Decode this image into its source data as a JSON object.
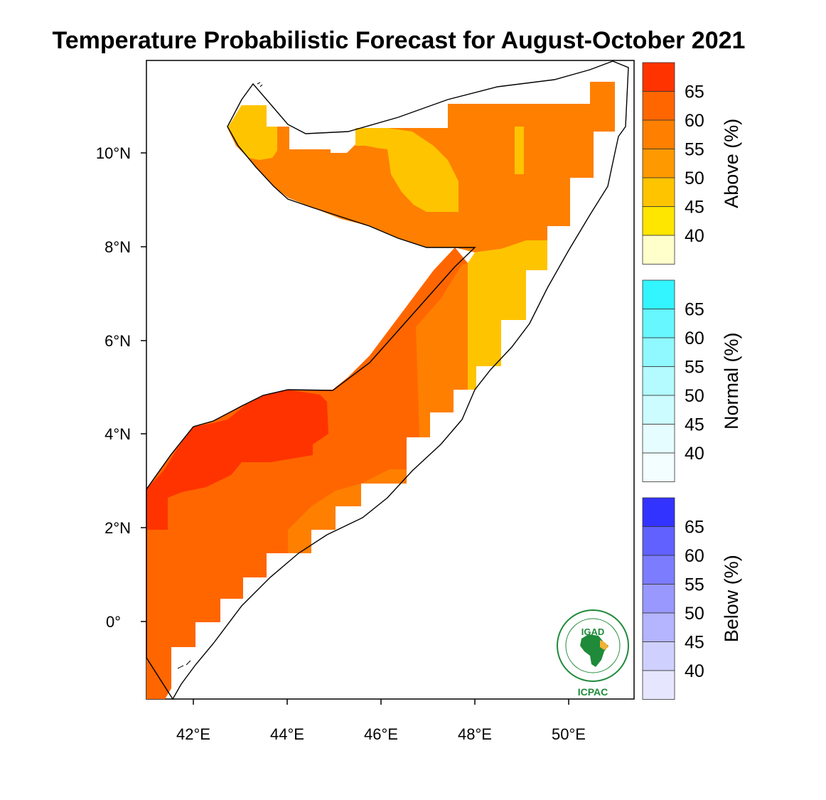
{
  "title": "Temperature Probabilistic Forecast for August-October 2021",
  "axes": {
    "lat_ticks": [
      "10°N",
      "8°N",
      "6°N",
      "4°N",
      "2°N",
      "0°"
    ],
    "lon_ticks": [
      "42°E",
      "44°E",
      "46°E",
      "48°E",
      "50°E"
    ]
  },
  "legends": [
    {
      "title": "Above (%)",
      "values": [
        "65",
        "60",
        "55",
        "50",
        "45",
        "40"
      ],
      "colors": [
        "#ff3300",
        "#ff6600",
        "#ff7f00",
        "#ff9900",
        "#ffc400",
        "#ffe600",
        "#ffffcc"
      ]
    },
    {
      "title": "Normal (%)",
      "values": [
        "65",
        "60",
        "55",
        "50",
        "45",
        "40"
      ],
      "colors": [
        "#33f5ff",
        "#66f7ff",
        "#8ff9ff",
        "#b3fbff",
        "#ccfcff",
        "#e6fdff",
        "#f2feff"
      ]
    },
    {
      "title": "Below (%)",
      "values": [
        "65",
        "60",
        "55",
        "50",
        "45",
        "40"
      ],
      "colors": [
        "#3333ff",
        "#6161ff",
        "#7c7cff",
        "#9898ff",
        "#b4b4ff",
        "#d0d0ff",
        "#e6e6ff"
      ]
    }
  ],
  "logo": {
    "top_text": "IGAD",
    "bottom_text": "ICPAC"
  },
  "map": {
    "region": "Somalia",
    "category": "Above",
    "levels_percent": [
      {
        "area": "southwest interior",
        "value": 65
      },
      {
        "area": "south and central",
        "value": 60
      },
      {
        "area": "south coast edge",
        "value": 55
      },
      {
        "area": "north",
        "value": 55
      },
      {
        "area": "east coast",
        "value": 45
      }
    ]
  }
}
